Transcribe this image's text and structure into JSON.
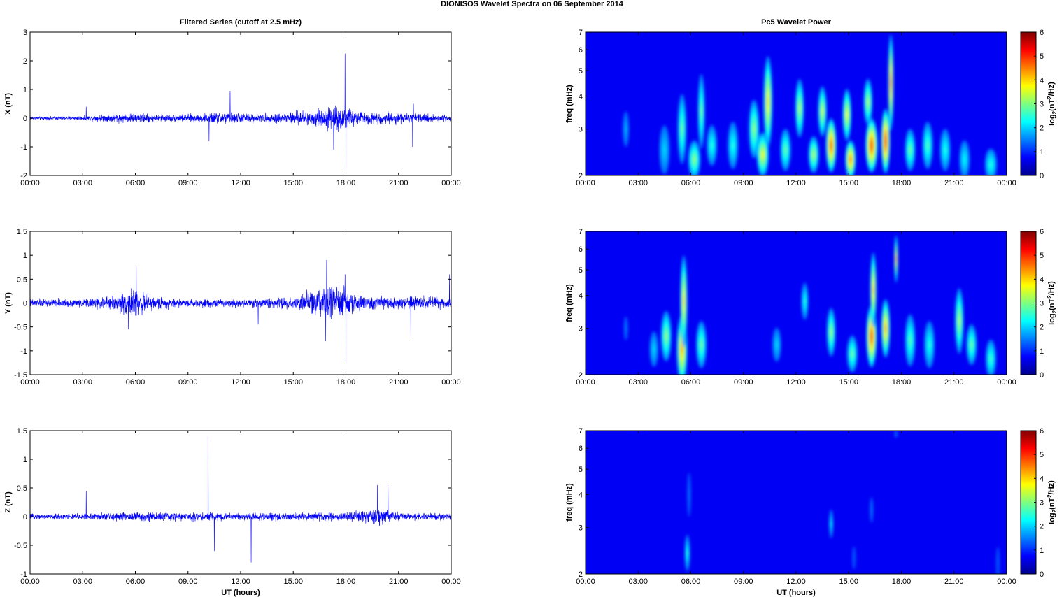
{
  "figure": {
    "title": "DIONISOS Wavelet Spectra on 06 September 2014",
    "left_title": "Filtered Series (cutoff at 2.5 mHz)",
    "right_title": "Pc5 Wavelet Power",
    "xlabel": "UT (hours)"
  },
  "chart_data": [
    {
      "type": "line",
      "id": "x-series",
      "ylabel": "X (nT)",
      "ylim": [
        -2,
        3
      ],
      "yticks": [
        "3",
        "2",
        "1",
        "0",
        "-1",
        "-2"
      ],
      "yvalues": [
        3,
        2,
        1,
        0,
        -1,
        -2
      ],
      "xlim": [
        0,
        24
      ],
      "xticks": [
        "00:00",
        "03:00",
        "06:00",
        "09:00",
        "12:00",
        "15:00",
        "18:00",
        "21:00",
        "00:00"
      ],
      "color": "#0000ff",
      "noise_envelope": {
        "x_hours": [
          0,
          3,
          4.5,
          6,
          7.5,
          9.5,
          11,
          12,
          13,
          14.5,
          15.5,
          16.5,
          17.5,
          18,
          19,
          20.5,
          22,
          24
        ],
        "amplitude": [
          0.08,
          0.1,
          0.2,
          0.25,
          0.18,
          0.2,
          0.3,
          0.25,
          0.2,
          0.3,
          0.35,
          0.5,
          0.6,
          0.5,
          0.3,
          0.3,
          0.2,
          0.18
        ]
      },
      "spikes": [
        {
          "x": 3.2,
          "y": 0.4
        },
        {
          "x": 10.2,
          "y": -0.8
        },
        {
          "x": 11.4,
          "y": 0.95
        },
        {
          "x": 17.3,
          "y": -1.1
        },
        {
          "x": 17.95,
          "y": 2.25
        },
        {
          "x": 18.0,
          "y": -1.75
        },
        {
          "x": 21.8,
          "y": -1.0
        },
        {
          "x": 21.85,
          "y": 0.5
        }
      ]
    },
    {
      "type": "line",
      "id": "y-series",
      "ylabel": "Y (nT)",
      "ylim": [
        -1.5,
        1.5
      ],
      "yticks": [
        "1.5",
        "1",
        "0.5",
        "0",
        "-0.5",
        "-1",
        "-1.5"
      ],
      "yvalues": [
        1.5,
        1,
        0.5,
        0,
        -0.5,
        -1,
        -1.5
      ],
      "xlim": [
        0,
        24
      ],
      "xticks": [
        "00:00",
        "03:00",
        "06:00",
        "09:00",
        "12:00",
        "15:00",
        "18:00",
        "21:00",
        "00:00"
      ],
      "color": "#0000ff",
      "noise_envelope": {
        "x_hours": [
          0,
          3,
          4.5,
          5.5,
          6,
          7,
          9,
          12,
          13,
          15,
          16,
          17,
          17.5,
          18,
          19,
          21,
          22,
          24
        ],
        "amplitude": [
          0.12,
          0.12,
          0.2,
          0.35,
          0.4,
          0.2,
          0.12,
          0.12,
          0.14,
          0.18,
          0.35,
          0.45,
          0.5,
          0.45,
          0.2,
          0.18,
          0.2,
          0.18
        ]
      },
      "spikes": [
        {
          "x": 6.05,
          "y": 0.75
        },
        {
          "x": 5.6,
          "y": -0.55
        },
        {
          "x": 13.0,
          "y": -0.45
        },
        {
          "x": 16.9,
          "y": 0.9
        },
        {
          "x": 16.85,
          "y": -0.8
        },
        {
          "x": 17.95,
          "y": 0.6
        },
        {
          "x": 18.0,
          "y": -1.25
        },
        {
          "x": 21.7,
          "y": -0.7
        },
        {
          "x": 23.9,
          "y": 0.6
        }
      ]
    },
    {
      "type": "line",
      "id": "z-series",
      "ylabel": "Z (nT)",
      "ylim": [
        -1,
        1.5
      ],
      "yticks": [
        "1.5",
        "1",
        "0.5",
        "0",
        "-0.5",
        "-1"
      ],
      "yvalues": [
        1.5,
        1,
        0.5,
        0,
        -0.5,
        -1
      ],
      "xlim": [
        0,
        24
      ],
      "xticks": [
        "00:00",
        "03:00",
        "06:00",
        "09:00",
        "12:00",
        "15:00",
        "18:00",
        "21:00",
        "00:00"
      ],
      "xlabel": "UT (hours)",
      "color": "#0000ff",
      "noise_envelope": {
        "x_hours": [
          0,
          3,
          5,
          6,
          8,
          10,
          12,
          15,
          18,
          19.5,
          20,
          21,
          24
        ],
        "amplitude": [
          0.06,
          0.08,
          0.1,
          0.12,
          0.1,
          0.1,
          0.09,
          0.1,
          0.1,
          0.18,
          0.2,
          0.1,
          0.08
        ]
      },
      "spikes": [
        {
          "x": 3.2,
          "y": 0.45
        },
        {
          "x": 10.15,
          "y": 1.4
        },
        {
          "x": 10.5,
          "y": -0.6
        },
        {
          "x": 12.6,
          "y": -0.8
        },
        {
          "x": 19.8,
          "y": 0.55
        },
        {
          "x": 20.4,
          "y": 0.55
        }
      ]
    },
    {
      "type": "heatmap",
      "id": "x-wavelet",
      "ylabel": "freq (mHz)",
      "yscale": "log",
      "ylim": [
        2,
        7
      ],
      "yticks": [
        "7",
        "6",
        "5",
        "4",
        "3",
        "2"
      ],
      "yvalues": [
        7,
        6,
        5,
        4,
        3,
        2
      ],
      "xlim": [
        0,
        24
      ],
      "xticks": [
        "00:00",
        "03:00",
        "06:00",
        "09:00",
        "12:00",
        "15:00",
        "18:00",
        "21:00",
        "00:00"
      ],
      "colorbar": {
        "label": "log2(nT^2/Hz)",
        "range": [
          0,
          6
        ],
        "ticks": [
          "6",
          "5",
          "4",
          "3",
          "2",
          "1",
          "0"
        ]
      },
      "blobs": [
        {
          "x": 2.3,
          "f": 3.0,
          "power": 1.2,
          "w": 0.18,
          "hf": 0.6
        },
        {
          "x": 4.5,
          "f": 2.5,
          "power": 1.5,
          "w": 0.3,
          "hf": 0.7
        },
        {
          "x": 5.5,
          "f": 3.0,
          "power": 2.5,
          "w": 0.25,
          "hf": 1.2
        },
        {
          "x": 6.2,
          "f": 2.3,
          "power": 2.8,
          "w": 0.35,
          "hf": 0.5
        },
        {
          "x": 6.6,
          "f": 3.5,
          "power": 2.5,
          "w": 0.2,
          "hf": 1.5
        },
        {
          "x": 7.2,
          "f": 2.6,
          "power": 2.0,
          "w": 0.3,
          "hf": 0.6
        },
        {
          "x": 8.4,
          "f": 2.6,
          "power": 2.0,
          "w": 0.3,
          "hf": 0.7
        },
        {
          "x": 9.6,
          "f": 3.0,
          "power": 2.8,
          "w": 0.3,
          "hf": 1.0
        },
        {
          "x": 10.1,
          "f": 2.4,
          "power": 3.5,
          "w": 0.35,
          "hf": 0.6
        },
        {
          "x": 10.4,
          "f": 3.8,
          "power": 3.8,
          "w": 0.25,
          "hf": 2.0
        },
        {
          "x": 11.4,
          "f": 2.5,
          "power": 2.5,
          "w": 0.3,
          "hf": 0.6
        },
        {
          "x": 12.2,
          "f": 3.6,
          "power": 3.0,
          "w": 0.25,
          "hf": 1.2
        },
        {
          "x": 13.0,
          "f": 2.4,
          "power": 3.0,
          "w": 0.3,
          "hf": 0.5
        },
        {
          "x": 13.5,
          "f": 3.5,
          "power": 3.2,
          "w": 0.25,
          "hf": 1.0
        },
        {
          "x": 14.0,
          "f": 2.6,
          "power": 4.8,
          "w": 0.3,
          "hf": 0.8
        },
        {
          "x": 14.9,
          "f": 3.4,
          "power": 3.5,
          "w": 0.25,
          "hf": 1.0
        },
        {
          "x": 15.1,
          "f": 2.3,
          "power": 4.5,
          "w": 0.3,
          "hf": 0.5
        },
        {
          "x": 16.1,
          "f": 3.8,
          "power": 3.0,
          "w": 0.25,
          "hf": 1.0
        },
        {
          "x": 16.3,
          "f": 2.6,
          "power": 5.0,
          "w": 0.35,
          "hf": 0.8
        },
        {
          "x": 17.1,
          "f": 2.7,
          "power": 5.3,
          "w": 0.25,
          "hf": 1.0
        },
        {
          "x": 17.4,
          "f": 4.5,
          "power": 4.5,
          "w": 0.15,
          "hf": 2.5
        },
        {
          "x": 18.5,
          "f": 2.5,
          "power": 2.5,
          "w": 0.3,
          "hf": 0.6
        },
        {
          "x": 19.5,
          "f": 2.6,
          "power": 2.3,
          "w": 0.3,
          "hf": 0.7
        },
        {
          "x": 20.5,
          "f": 2.5,
          "power": 2.0,
          "w": 0.3,
          "hf": 0.6
        },
        {
          "x": 21.6,
          "f": 2.3,
          "power": 1.8,
          "w": 0.3,
          "hf": 0.5
        },
        {
          "x": 23.1,
          "f": 2.2,
          "power": 2.0,
          "w": 0.35,
          "hf": 0.4
        }
      ]
    },
    {
      "type": "heatmap",
      "id": "y-wavelet",
      "ylabel": "freq (mHz)",
      "yscale": "log",
      "ylim": [
        2,
        7
      ],
      "yticks": [
        "7",
        "6",
        "5",
        "4",
        "3",
        "2"
      ],
      "yvalues": [
        7,
        6,
        5,
        4,
        3,
        2
      ],
      "xlim": [
        0,
        24
      ],
      "xticks": [
        "00:00",
        "03:00",
        "06:00",
        "09:00",
        "12:00",
        "15:00",
        "18:00",
        "21:00",
        "00:00"
      ],
      "colorbar": {
        "label": "log2(nT^2/Hz)",
        "range": [
          0,
          6
        ],
        "ticks": [
          "6",
          "5",
          "4",
          "3",
          "2",
          "1",
          "0"
        ]
      },
      "blobs": [
        {
          "x": 2.3,
          "f": 3.0,
          "power": 0.8,
          "w": 0.12,
          "hf": 0.4
        },
        {
          "x": 3.9,
          "f": 2.5,
          "power": 1.5,
          "w": 0.25,
          "hf": 0.5
        },
        {
          "x": 4.6,
          "f": 2.8,
          "power": 2.8,
          "w": 0.3,
          "hf": 0.8
        },
        {
          "x": 5.5,
          "f": 2.5,
          "power": 4.2,
          "w": 0.3,
          "hf": 1.0
        },
        {
          "x": 5.6,
          "f": 3.8,
          "power": 3.8,
          "w": 0.2,
          "hf": 2.0
        },
        {
          "x": 6.6,
          "f": 2.6,
          "power": 2.5,
          "w": 0.3,
          "hf": 0.7
        },
        {
          "x": 10.9,
          "f": 2.6,
          "power": 1.5,
          "w": 0.25,
          "hf": 0.5
        },
        {
          "x": 12.5,
          "f": 3.8,
          "power": 2.0,
          "w": 0.2,
          "hf": 0.8
        },
        {
          "x": 14.0,
          "f": 2.9,
          "power": 2.8,
          "w": 0.25,
          "hf": 0.8
        },
        {
          "x": 15.2,
          "f": 2.4,
          "power": 2.5,
          "w": 0.3,
          "hf": 0.5
        },
        {
          "x": 16.3,
          "f": 2.8,
          "power": 5.0,
          "w": 0.3,
          "hf": 1.0
        },
        {
          "x": 16.4,
          "f": 4.2,
          "power": 4.0,
          "w": 0.18,
          "hf": 1.8
        },
        {
          "x": 17.1,
          "f": 3.0,
          "power": 4.2,
          "w": 0.25,
          "hf": 1.0
        },
        {
          "x": 17.7,
          "f": 5.5,
          "power": 4.0,
          "w": 0.1,
          "hf": 1.5
        },
        {
          "x": 18.5,
          "f": 2.7,
          "power": 2.3,
          "w": 0.3,
          "hf": 0.8
        },
        {
          "x": 19.6,
          "f": 2.6,
          "power": 2.0,
          "w": 0.3,
          "hf": 0.7
        },
        {
          "x": 21.3,
          "f": 3.2,
          "power": 3.0,
          "w": 0.25,
          "hf": 1.2
        },
        {
          "x": 22.0,
          "f": 2.6,
          "power": 2.5,
          "w": 0.3,
          "hf": 0.6
        },
        {
          "x": 23.1,
          "f": 2.3,
          "power": 2.2,
          "w": 0.3,
          "hf": 0.5
        }
      ]
    },
    {
      "type": "heatmap",
      "id": "z-wavelet",
      "ylabel": "freq (mHz)",
      "yscale": "log",
      "ylim": [
        2,
        7
      ],
      "yticks": [
        "7",
        "6",
        "5",
        "4",
        "3",
        "2"
      ],
      "yvalues": [
        7,
        6,
        5,
        4,
        3,
        2
      ],
      "xlim": [
        0,
        24
      ],
      "xticks": [
        "00:00",
        "03:00",
        "06:00",
        "09:00",
        "12:00",
        "15:00",
        "18:00",
        "21:00",
        "00:00"
      ],
      "xlabel": "UT (hours)",
      "colorbar": {
        "label": "log2(nT^2/Hz)",
        "range": [
          0,
          6
        ],
        "ticks": [
          "6",
          "5",
          "4",
          "3",
          "2",
          "1",
          "0"
        ]
      },
      "blobs": [
        {
          "x": 5.8,
          "f": 2.4,
          "power": 2.0,
          "w": 0.15,
          "hf": 0.5
        },
        {
          "x": 5.9,
          "f": 4.0,
          "power": 0.8,
          "w": 0.1,
          "hf": 1.0
        },
        {
          "x": 14.0,
          "f": 3.1,
          "power": 1.6,
          "w": 0.12,
          "hf": 0.5
        },
        {
          "x": 15.3,
          "f": 2.3,
          "power": 0.6,
          "w": 0.1,
          "hf": 0.3
        },
        {
          "x": 16.3,
          "f": 3.5,
          "power": 0.8,
          "w": 0.1,
          "hf": 0.5
        },
        {
          "x": 17.7,
          "f": 6.8,
          "power": 0.8,
          "w": 0.08,
          "hf": 0.3
        },
        {
          "x": 23.5,
          "f": 2.2,
          "power": 0.6,
          "w": 0.1,
          "hf": 0.4
        }
      ]
    }
  ]
}
